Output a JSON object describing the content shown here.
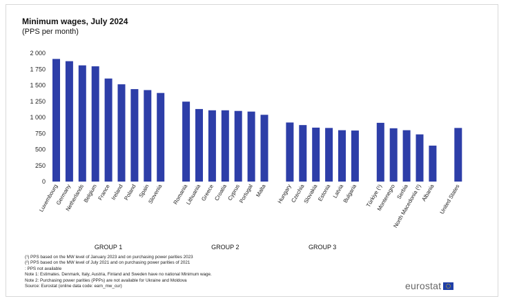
{
  "chart_data": {
    "type": "bar",
    "title": "Minimum wages, July 2024",
    "subtitle": "(PPS per month)",
    "ylim": [
      0,
      2000
    ],
    "yticks": [
      0,
      250,
      500,
      750,
      1000,
      1250,
      1500,
      1750,
      2000
    ],
    "ytick_labels": [
      "0",
      "250",
      "500",
      "750",
      "1 000",
      "1 250",
      "1 500",
      "1 750",
      "2 000"
    ],
    "bar_color": "#2d3ea8",
    "grid": false,
    "groups": [
      {
        "name": "GROUP 1",
        "categories": [
          "Luxembourg",
          "Germany",
          "Netherlands",
          "Belgium",
          "France",
          "Ireland",
          "Poland",
          "Spain",
          "Slovenia"
        ],
        "values": [
          1910,
          1875,
          1810,
          1795,
          1605,
          1515,
          1440,
          1425,
          1380
        ]
      },
      {
        "name": "GROUP 2",
        "categories": [
          "Romania",
          "Lithuania",
          "Greece",
          "Croatia",
          "Cyprus",
          "Portugal",
          "Malta"
        ],
        "values": [
          1245,
          1130,
          1110,
          1110,
          1100,
          1090,
          1040
        ]
      },
      {
        "name": "GROUP 3",
        "categories": [
          "Hungary",
          "Czechia",
          "Slovakia",
          "Estonia",
          "Latvia",
          "Bulgaria"
        ],
        "values": [
          920,
          880,
          840,
          835,
          800,
          795
        ]
      },
      {
        "name": "",
        "categories": [
          "Türkiye (¹)",
          "Montenegro",
          "Serbia",
          "North Macedonia (²)",
          "Albania"
        ],
        "values": [
          915,
          830,
          800,
          735,
          560
        ]
      },
      {
        "name": "",
        "categories": [
          "United States"
        ],
        "values": [
          835
        ]
      }
    ]
  },
  "footnotes": [
    "(¹) PPS based on the MW level of January 2023 and on purchasing power parities 2023",
    "(²) PPS based on the MW level of July 2021 and on purchasing power parities of 2021",
    ": PPS not available",
    "Note 1: Estimates. Denmark, Italy, Austria, Finland and Sweden have no national Minimum wage.",
    "Note 2: Purchasing power parities (PPPs) are not available for Ukraine and Moldova",
    "Source: Eurostat (online data code: earn_mw_cur)"
  ],
  "logo": {
    "text": "eurostat",
    "flag_icon": "eu-flag-icon"
  }
}
